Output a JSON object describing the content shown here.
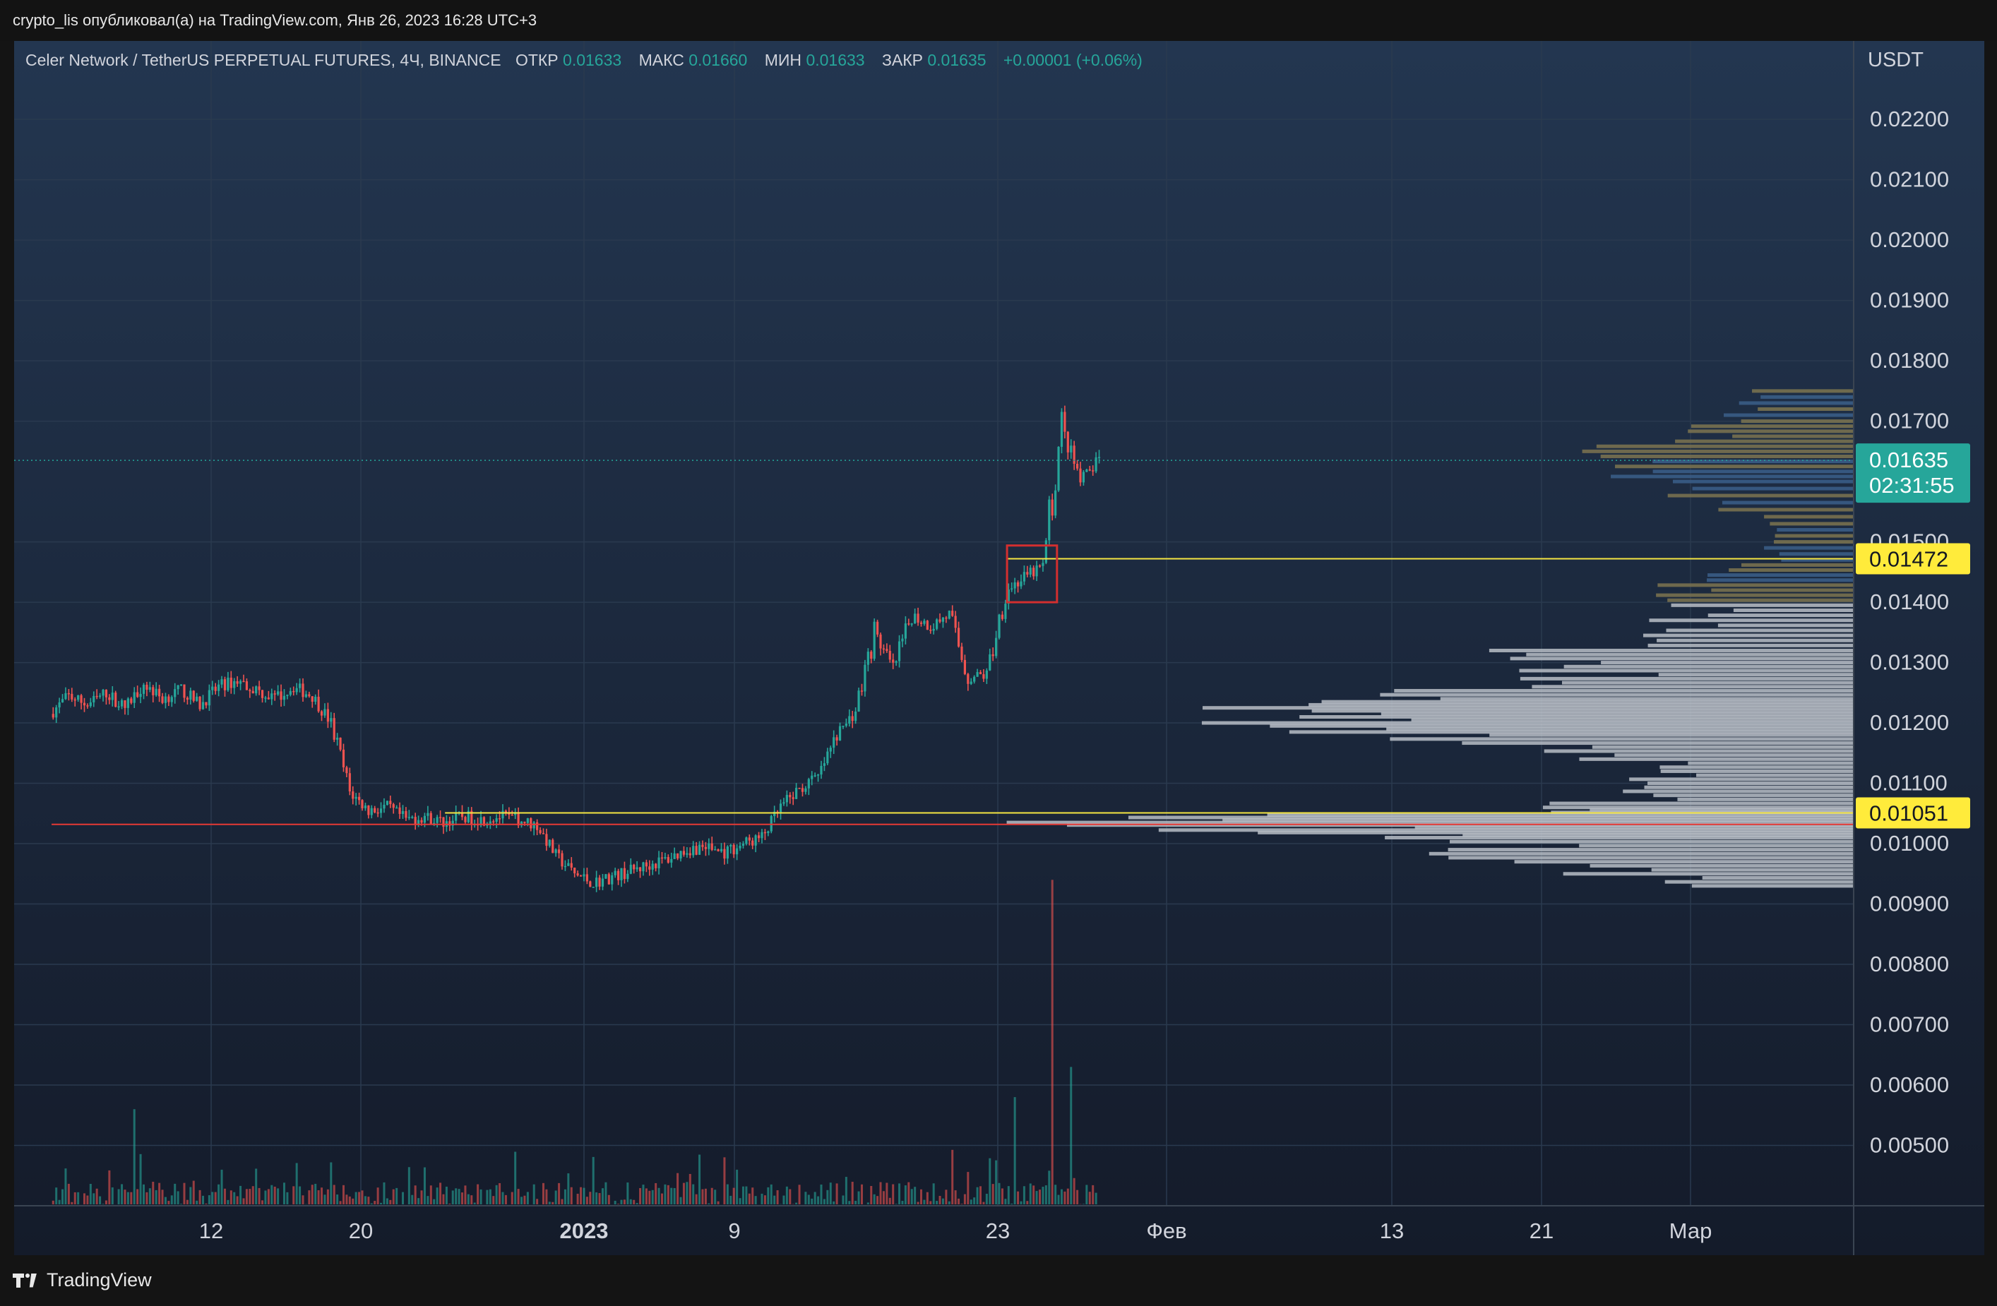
{
  "publish_line": "crypto_lis опубликовал(а) на TradingView.com, Янв 26, 2023 16:28 UTC+3",
  "legend": {
    "symbol": "Celer Network / TetherUS PERPETUAL FUTURES, 4Ч, BINANCE",
    "open_label": "ОТКР",
    "open": "0.01633",
    "high_label": "МАКС",
    "high": "0.01660",
    "low_label": "МИН",
    "low": "0.01633",
    "close_label": "ЗАКР",
    "close": "0.01635",
    "change": "+0.00001 (+0.06%)"
  },
  "brand": "TradingView",
  "colors": {
    "up": "#26a69a",
    "down": "#ef5350",
    "level": "#f5e642",
    "support": "#e53935",
    "box": "#d32f2f"
  },
  "chart_data": {
    "type": "candlestick",
    "currency": "USDT",
    "timeframe": "4Ч",
    "ylim": [
      0.004,
      0.0233
    ],
    "y_ticks": [
      "0.02200",
      "0.02100",
      "0.02000",
      "0.01900",
      "0.01800",
      "0.01700",
      "0.01500",
      "0.01400",
      "0.01300",
      "0.01200",
      "0.01100",
      "0.01000",
      "0.00900",
      "0.00800",
      "0.00700",
      "0.00600",
      "0.00500"
    ],
    "x_ticks": [
      "12",
      "20",
      "2023",
      "9",
      "23",
      "Фев",
      "13",
      "21",
      "Мар"
    ],
    "last_price": "0.01635",
    "countdown": "02:31:55",
    "levels": [
      {
        "value": 0.01472,
        "label": "0.01472",
        "color": "yellow",
        "from": "2023-01-21"
      },
      {
        "value": 0.01051,
        "label": "0.01051",
        "color": "yellow",
        "from": "2022-12-22"
      },
      {
        "value": 0.01032,
        "label": "",
        "color": "red",
        "from": "2022-12-01"
      }
    ],
    "highlight_box": {
      "from": "2023-01-21",
      "to": "2023-01-23 16:00",
      "low": 0.014,
      "high": 0.01494
    },
    "price_path": [
      [
        "2022-12-01",
        0.01215
      ],
      [
        "2022-12-02",
        0.01245
      ],
      [
        "2022-12-03",
        0.0123
      ],
      [
        "2022-12-04",
        0.0125
      ],
      [
        "2022-12-05",
        0.01225
      ],
      [
        "2022-12-06",
        0.01265
      ],
      [
        "2022-12-07",
        0.0124
      ],
      [
        "2022-12-08",
        0.01255
      ],
      [
        "2022-12-09",
        0.0123
      ],
      [
        "2022-12-10",
        0.0126
      ],
      [
        "2022-12-11",
        0.0127
      ],
      [
        "2022-12-12",
        0.01255
      ],
      [
        "2022-12-13",
        0.0124
      ],
      [
        "2022-12-14",
        0.0126
      ],
      [
        "2022-12-15",
        0.01245
      ],
      [
        "2022-12-16",
        0.012
      ],
      [
        "2022-12-17",
        0.01085
      ],
      [
        "2022-12-18",
        0.01055
      ],
      [
        "2022-12-19",
        0.0106
      ],
      [
        "2022-12-20",
        0.0104
      ],
      [
        "2022-12-21",
        0.01045
      ],
      [
        "2022-12-22",
        0.01035
      ],
      [
        "2022-12-23",
        0.01045
      ],
      [
        "2022-12-24",
        0.0104
      ],
      [
        "2022-12-25",
        0.01045
      ],
      [
        "2022-12-26",
        0.0104
      ],
      [
        "2022-12-27",
        0.0103
      ],
      [
        "2022-12-28",
        0.0098
      ],
      [
        "2022-12-29",
        0.0095
      ],
      [
        "2022-12-30",
        0.00935
      ],
      [
        "2022-12-31",
        0.00945
      ],
      [
        "2023-01-01",
        0.00955
      ],
      [
        "2023-01-02",
        0.00965
      ],
      [
        "2023-01-03",
        0.00975
      ],
      [
        "2023-01-04",
        0.0099
      ],
      [
        "2023-01-05",
        0.00995
      ],
      [
        "2023-01-06",
        0.00985
      ],
      [
        "2023-01-07",
        0.01
      ],
      [
        "2023-01-08",
        0.0101
      ],
      [
        "2023-01-09",
        0.0106
      ],
      [
        "2023-01-10",
        0.0109
      ],
      [
        "2023-01-11",
        0.0111
      ],
      [
        "2023-01-12",
        0.0118
      ],
      [
        "2023-01-13",
        0.0122
      ],
      [
        "2023-01-14",
        0.0135
      ],
      [
        "2023-01-15",
        0.0129
      ],
      [
        "2023-01-16",
        0.0138
      ],
      [
        "2023-01-17",
        0.0136
      ],
      [
        "2023-01-18",
        0.0138
      ],
      [
        "2023-01-19",
        0.01275
      ],
      [
        "2023-01-20",
        0.0128
      ],
      [
        "2023-01-21",
        0.0142
      ],
      [
        "2023-01-22",
        0.0144
      ],
      [
        "2023-01-23",
        0.0146
      ],
      [
        "2023-01-24",
        0.0169
      ],
      [
        "2023-01-25",
        0.016
      ],
      [
        "2023-01-26",
        0.01635
      ]
    ],
    "volume_spikes": [
      [
        "2022-12-05",
        0.0056
      ],
      [
        "2023-01-21",
        0.0058
      ],
      [
        "2023-01-23",
        0.0094
      ],
      [
        "2023-01-24",
        0.0063
      ]
    ],
    "volume_profile": [
      [
        0.0093,
        0.02
      ],
      [
        0.0097,
        0.035
      ],
      [
        0.0101,
        0.045
      ],
      [
        0.01035,
        0.085
      ],
      [
        0.0106,
        0.03
      ],
      [
        0.011,
        0.022
      ],
      [
        0.0114,
        0.025
      ],
      [
        0.0118,
        0.055
      ],
      [
        0.0121,
        0.072
      ],
      [
        0.0124,
        0.05
      ],
      [
        0.0128,
        0.03
      ],
      [
        0.0132,
        0.035
      ],
      [
        0.0137,
        0.02
      ],
      [
        0.0142,
        0.02
      ],
      [
        0.0147,
        0.012
      ],
      [
        0.0153,
        0.01
      ],
      [
        0.016,
        0.022
      ],
      [
        0.0165,
        0.025
      ],
      [
        0.017,
        0.015
      ],
      [
        0.0176,
        0.008
      ]
    ]
  }
}
